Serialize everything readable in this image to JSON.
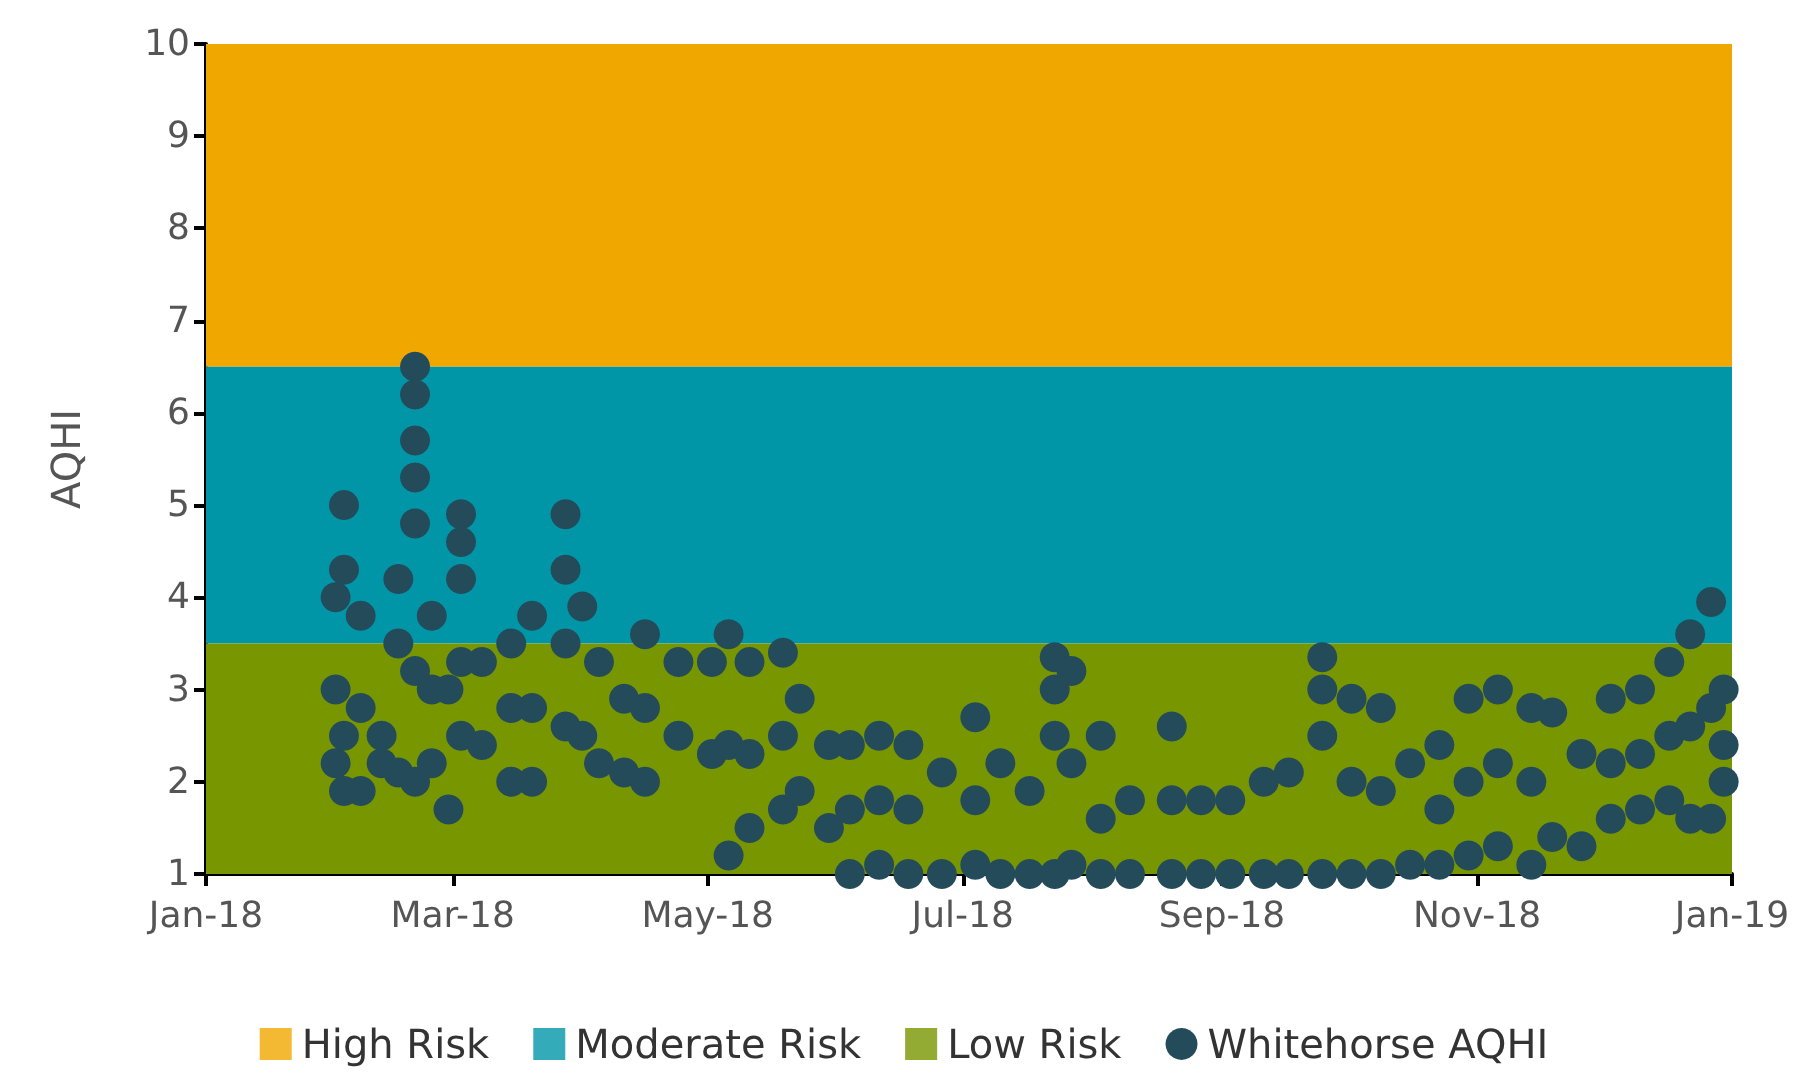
{
  "chart_data": {
    "type": "scatter",
    "ylabel": "AQHI",
    "xlim": [
      "2018-01-01",
      "2019-01-01"
    ],
    "xticks": [
      {
        "value": "2018-01-01",
        "label": "Jan-18"
      },
      {
        "value": "2018-03-01",
        "label": "Mar-18"
      },
      {
        "value": "2018-05-01",
        "label": "May-18"
      },
      {
        "value": "2018-07-01",
        "label": "Jul-18"
      },
      {
        "value": "2018-09-01",
        "label": "Sep-18"
      },
      {
        "value": "2018-11-01",
        "label": "Nov-18"
      },
      {
        "value": "2019-01-01",
        "label": "Jan-19"
      }
    ],
    "ylim": [
      1,
      10
    ],
    "yticks": [
      1,
      2,
      3,
      4,
      5,
      6,
      7,
      8,
      9,
      10
    ],
    "grid": false,
    "legend": "bottom",
    "marker": "circle",
    "bands": [
      {
        "axis": "y",
        "from": 6.5,
        "to": 10,
        "label": "High Risk",
        "color": "#f0a800"
      },
      {
        "axis": "y",
        "from": 3.5,
        "to": 6.5,
        "label": "Moderate Risk",
        "color": "#0096a8"
      },
      {
        "axis": "y",
        "from": 1,
        "to": 3.5,
        "label": "Low Risk",
        "color": "#789600"
      }
    ],
    "series": [
      {
        "name": "Whitehorse AQHI",
        "color": "#244b5a",
        "x": [
          "2018-02-01",
          "2018-02-01",
          "2018-02-01",
          "2018-02-03",
          "2018-02-03",
          "2018-02-03",
          "2018-02-03",
          "2018-02-07",
          "2018-02-07",
          "2018-02-07",
          "2018-02-12",
          "2018-02-12",
          "2018-02-16",
          "2018-02-16",
          "2018-02-16",
          "2018-02-20",
          "2018-02-20",
          "2018-02-20",
          "2018-02-20",
          "2018-02-20",
          "2018-02-20",
          "2018-02-20",
          "2018-02-24",
          "2018-02-24",
          "2018-02-24",
          "2018-02-28",
          "2018-02-28",
          "2018-03-03",
          "2018-03-03",
          "2018-03-03",
          "2018-03-03",
          "2018-03-03",
          "2018-03-08",
          "2018-03-08",
          "2018-03-15",
          "2018-03-15",
          "2018-03-15",
          "2018-03-20",
          "2018-03-20",
          "2018-03-20",
          "2018-03-28",
          "2018-03-28",
          "2018-03-28",
          "2018-03-28",
          "2018-04-01",
          "2018-04-01",
          "2018-04-05",
          "2018-04-05",
          "2018-04-11",
          "2018-04-11",
          "2018-04-16",
          "2018-04-16",
          "2018-04-16",
          "2018-04-24",
          "2018-04-24",
          "2018-05-02",
          "2018-05-02",
          "2018-05-06",
          "2018-05-06",
          "2018-05-06",
          "2018-05-11",
          "2018-05-11",
          "2018-05-11",
          "2018-05-19",
          "2018-05-19",
          "2018-05-19",
          "2018-05-23",
          "2018-05-23",
          "2018-05-30",
          "2018-05-30",
          "2018-06-04",
          "2018-06-04",
          "2018-06-04",
          "2018-06-11",
          "2018-06-11",
          "2018-06-11",
          "2018-06-18",
          "2018-06-18",
          "2018-06-18",
          "2018-06-26",
          "2018-06-26",
          "2018-07-04",
          "2018-07-04",
          "2018-07-04",
          "2018-07-10",
          "2018-07-10",
          "2018-07-17",
          "2018-07-17",
          "2018-07-23",
          "2018-07-23",
          "2018-07-23",
          "2018-07-23",
          "2018-07-27",
          "2018-07-27",
          "2018-07-27",
          "2018-08-03",
          "2018-08-03",
          "2018-08-03",
          "2018-08-10",
          "2018-08-10",
          "2018-08-20",
          "2018-08-20",
          "2018-08-20",
          "2018-08-27",
          "2018-08-27",
          "2018-09-03",
          "2018-09-03",
          "2018-09-11",
          "2018-09-11",
          "2018-09-17",
          "2018-09-17",
          "2018-09-25",
          "2018-09-25",
          "2018-09-25",
          "2018-09-25",
          "2018-10-02",
          "2018-10-02",
          "2018-10-02",
          "2018-10-09",
          "2018-10-09",
          "2018-10-09",
          "2018-10-16",
          "2018-10-16",
          "2018-10-23",
          "2018-10-23",
          "2018-10-23",
          "2018-10-30",
          "2018-10-30",
          "2018-10-30",
          "2018-11-06",
          "2018-11-06",
          "2018-11-06",
          "2018-11-14",
          "2018-11-14",
          "2018-11-14",
          "2018-11-19",
          "2018-11-19",
          "2018-11-26",
          "2018-11-26",
          "2018-12-03",
          "2018-12-03",
          "2018-12-03",
          "2018-12-10",
          "2018-12-10",
          "2018-12-10",
          "2018-12-17",
          "2018-12-17",
          "2018-12-17",
          "2018-12-22",
          "2018-12-22",
          "2018-12-22",
          "2018-12-27",
          "2018-12-27",
          "2018-12-27",
          "2018-12-30",
          "2018-12-30",
          "2018-12-30"
        ],
        "values": [
          4.0,
          3.0,
          2.2,
          5.0,
          4.3,
          2.5,
          1.9,
          3.8,
          2.8,
          1.9,
          2.5,
          2.2,
          4.2,
          3.5,
          2.1,
          6.5,
          6.2,
          5.7,
          5.3,
          4.8,
          3.2,
          2.0,
          3.8,
          3.0,
          2.2,
          3.0,
          1.7,
          4.9,
          4.6,
          4.2,
          3.3,
          2.5,
          3.3,
          2.4,
          3.5,
          2.8,
          2.0,
          3.8,
          2.8,
          2.0,
          4.9,
          4.3,
          3.5,
          2.6,
          3.9,
          2.5,
          3.3,
          2.2,
          2.9,
          2.1,
          3.6,
          2.8,
          2.0,
          3.3,
          2.5,
          3.3,
          2.3,
          3.6,
          2.4,
          1.2,
          3.3,
          2.3,
          1.5,
          3.4,
          2.5,
          1.7,
          2.9,
          1.9,
          2.4,
          1.5,
          2.4,
          1.7,
          1.0,
          2.5,
          1.8,
          1.1,
          2.4,
          1.7,
          1.0,
          2.1,
          1.0,
          2.7,
          1.8,
          1.1,
          2.2,
          1.0,
          1.9,
          1.0,
          3.35,
          3.0,
          2.5,
          1.0,
          3.2,
          2.2,
          1.1,
          2.5,
          1.6,
          1.0,
          1.8,
          1.0,
          2.6,
          1.8,
          1.0,
          1.8,
          1.0,
          1.8,
          1.0,
          2.0,
          1.0,
          2.1,
          1.0,
          3.35,
          3.0,
          2.5,
          1.0,
          2.9,
          2.0,
          1.0,
          2.8,
          1.9,
          1.0,
          2.2,
          1.1,
          2.4,
          1.7,
          1.1,
          2.9,
          2.0,
          1.2,
          3.0,
          2.2,
          1.3,
          2.8,
          2.0,
          1.1,
          2.75,
          1.4,
          2.3,
          1.3,
          2.9,
          2.2,
          1.6,
          3.0,
          2.3,
          1.7,
          3.3,
          2.5,
          1.8,
          3.6,
          2.6,
          1.6,
          3.95,
          2.8,
          1.6,
          3.0,
          2.4,
          2.0
        ]
      }
    ]
  }
}
